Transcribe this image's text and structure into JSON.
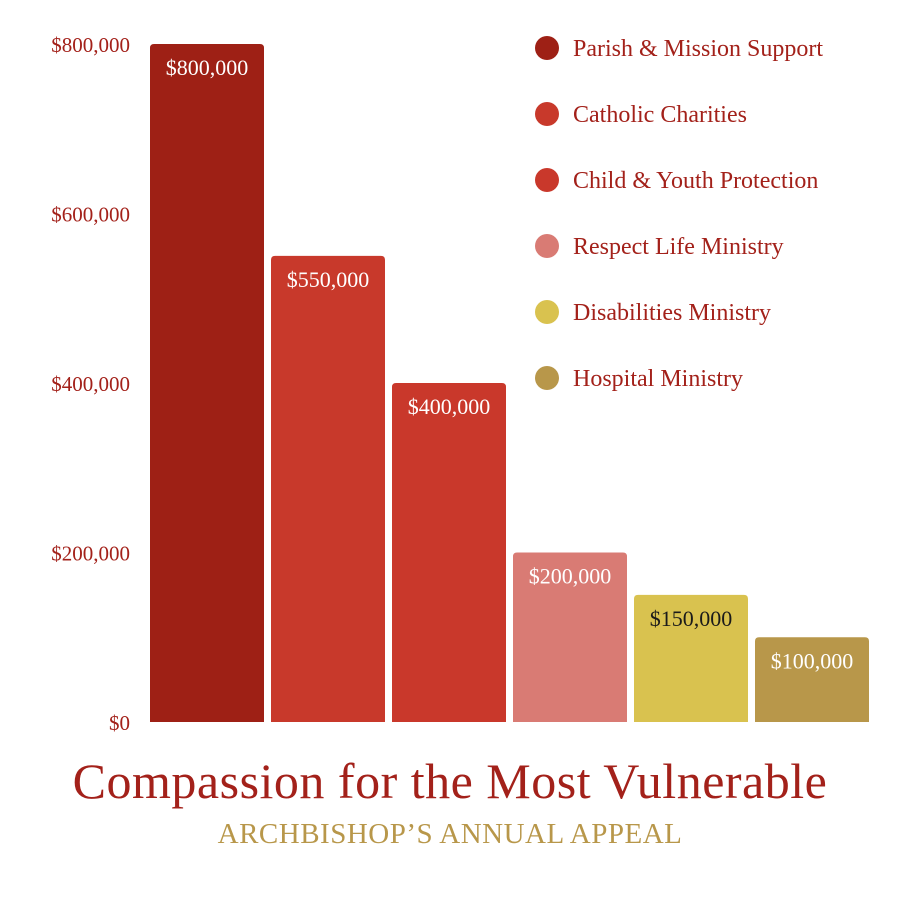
{
  "chart_data": {
    "type": "bar",
    "title": "Compassion for the Most Vulnerable",
    "subtitle": "ARCHBISHOP’S ANNUAL APPEAL",
    "categories": [
      "Parish & Mission Support",
      "Catholic Charities",
      "Child & Youth Protection",
      "Respect Life Ministry",
      "Disabilities Ministry",
      "Hospital Ministry"
    ],
    "values": [
      800000,
      550000,
      400000,
      200000,
      150000,
      100000
    ],
    "value_labels": [
      "$800,000",
      "$550,000",
      "$400,000",
      "$200,000",
      "$150,000",
      "$100,000"
    ],
    "ylim": [
      0,
      800000
    ],
    "yticks": [
      0,
      200000,
      400000,
      600000,
      800000
    ],
    "ytick_labels": [
      "$0",
      "$200,000",
      "$400,000",
      "$600,000",
      "$800,000"
    ],
    "xlabel": "",
    "ylabel": "",
    "grid": false,
    "legend_position": "top-right",
    "colors": [
      "#9e2015",
      "#c8392b",
      "#c9382b",
      "#d97b74",
      "#d9c24f",
      "#b8974a"
    ],
    "label_colors": [
      "#ffffff",
      "#ffffff",
      "#ffffff",
      "#ffffff",
      "#1a1a1a",
      "#ffffff"
    ]
  },
  "style": {
    "title_color": "#a3211a",
    "subtitle_color": "#b8974a",
    "axis_text_color": "#a3211a",
    "legend_text_color": "#a3211a"
  }
}
